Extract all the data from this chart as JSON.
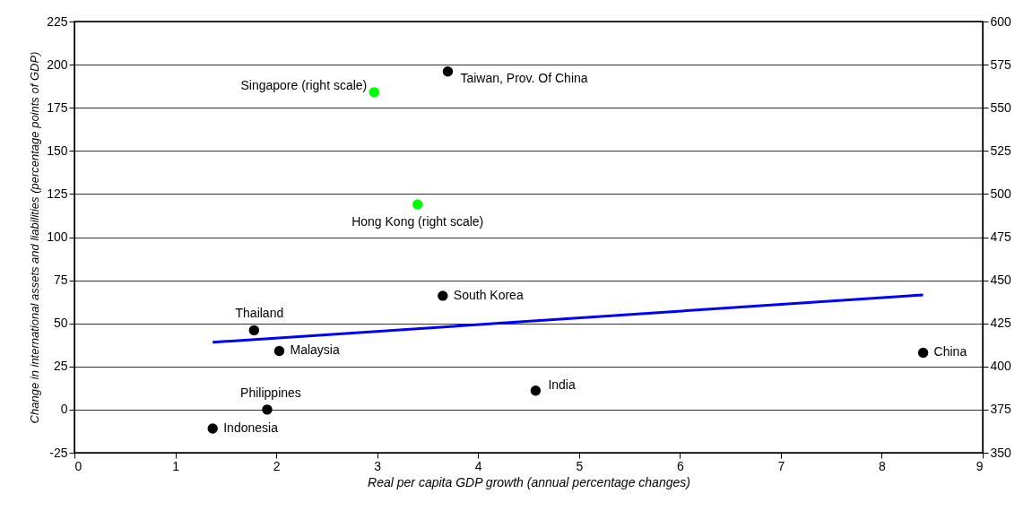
{
  "chart_data": {
    "type": "scatter",
    "xlabel": "Real per capita GDP growth (annual percentage changes)",
    "ylabel": "Change in international assets and liabilities (percentage points of GDP)",
    "xlim": [
      0,
      9
    ],
    "xticks": [
      0,
      1,
      2,
      3,
      4,
      5,
      6,
      7,
      8,
      9
    ],
    "ylim": [
      -25,
      225
    ],
    "yticks": [
      -25,
      0,
      25,
      50,
      75,
      100,
      125,
      150,
      175,
      200,
      225
    ],
    "y2lim": [
      350,
      600
    ],
    "y2ticks": [
      350,
      375,
      400,
      425,
      450,
      475,
      500,
      525,
      550,
      575,
      600
    ],
    "grid": "y",
    "marker": "circle",
    "series": [
      {
        "name": "Taiwan, Prov. Of China",
        "color": "#000000",
        "x": [
          3.7
        ],
        "values": [
          196
        ]
      },
      {
        "name": "Singapore (right scale)",
        "color": "#00ff00",
        "axis": "y2",
        "x": [
          2.97
        ],
        "values": [
          559
        ]
      },
      {
        "name": "Hong Kong (right scale)",
        "color": "#00ff00",
        "axis": "y2",
        "x": [
          3.4
        ],
        "values": [
          494
        ]
      },
      {
        "name": "South Korea",
        "color": "#000000",
        "x": [
          3.65
        ],
        "values": [
          66
        ]
      },
      {
        "name": "Thailand",
        "color": "#000000",
        "x": [
          1.78
        ],
        "values": [
          46
        ]
      },
      {
        "name": "Malaysia",
        "color": "#000000",
        "x": [
          2.03
        ],
        "values": [
          34
        ]
      },
      {
        "name": "China",
        "color": "#000000",
        "x": [
          8.41
        ],
        "values": [
          33
        ]
      },
      {
        "name": "India",
        "color": "#000000",
        "x": [
          4.57
        ],
        "values": [
          11
        ]
      },
      {
        "name": "Philippines",
        "color": "#000000",
        "x": [
          1.91
        ],
        "values": [
          0
        ]
      },
      {
        "name": "Indonesia",
        "color": "#000000",
        "x": [
          1.37
        ],
        "values": [
          -11
        ]
      },
      {
        "type": "line",
        "color": "#0000ff",
        "marker": "none",
        "line_style": "solid",
        "x": [
          1.37,
          8.41
        ],
        "values": [
          39,
          66.5
        ]
      }
    ]
  }
}
